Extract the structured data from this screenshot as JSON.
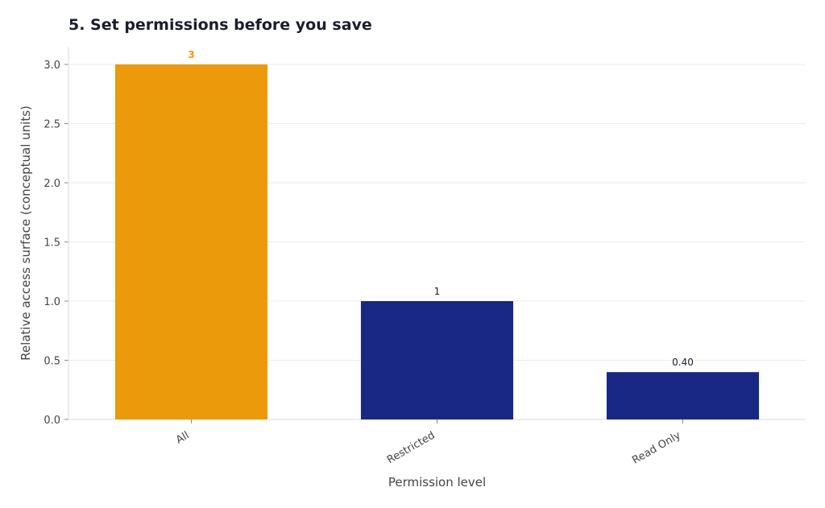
{
  "title": "5. Set permissions before you save",
  "chart_data": {
    "type": "bar",
    "title": "5. Set permissions before you save",
    "xlabel": "Permission level",
    "ylabel": "Relative access surface (conceptual units)",
    "categories": [
      "All",
      "Restricted",
      "Read Only"
    ],
    "values": [
      3,
      1,
      0.4
    ],
    "data_labels": [
      "3",
      "1",
      "0.40"
    ],
    "ylim": [
      0,
      3.15
    ],
    "yticks": [
      0,
      0.5,
      1,
      1.5,
      2,
      2.5,
      3
    ],
    "ytick_labels": [
      "0.0",
      "0.5",
      "1.0",
      "1.5",
      "2.0",
      "2.5",
      "3.0"
    ],
    "grid": true,
    "colors": {
      "highlight": "#EA9A0B",
      "default": "#182884",
      "highlight_label": "#EA9A0B",
      "default_label": "#1a1d2e",
      "grid": "#ebebeb",
      "axis": "#dddddd",
      "tick_text": "#444444"
    },
    "highlight_index": 0
  }
}
